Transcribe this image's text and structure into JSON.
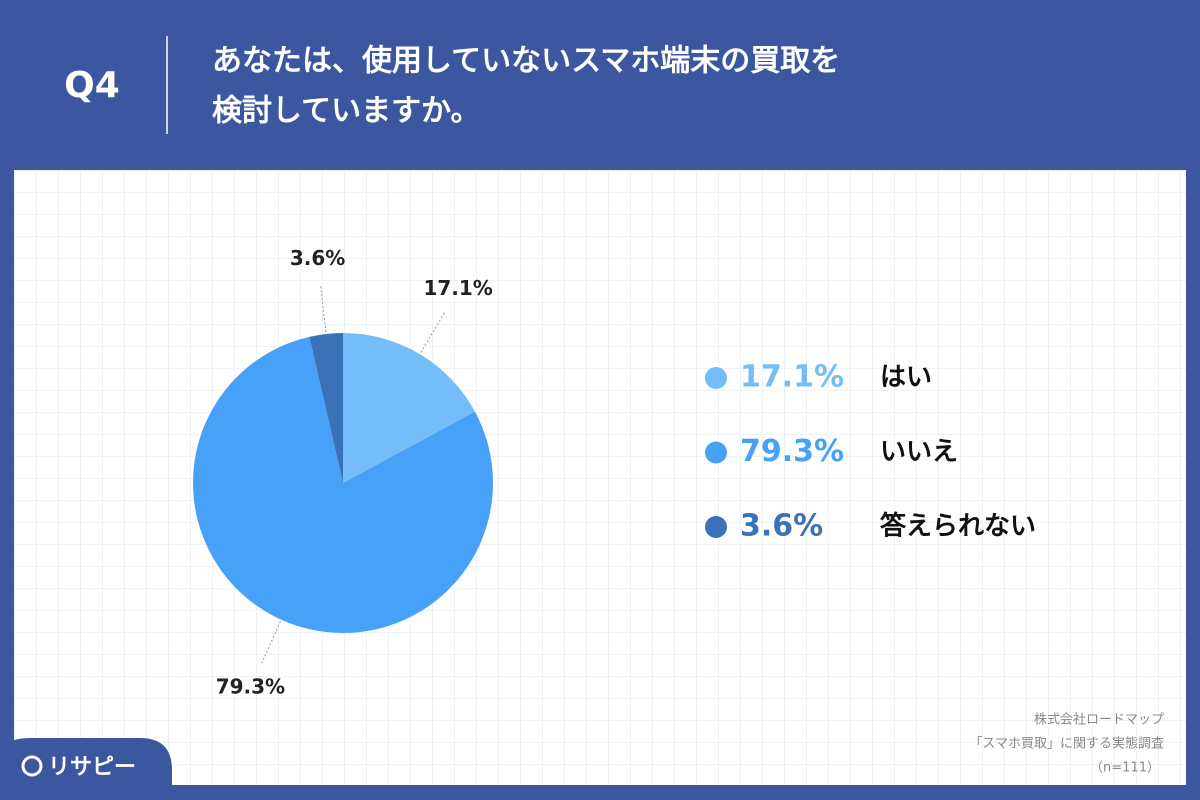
{
  "question": "Q4",
  "chart_data": {
    "type": "pie",
    "title": [
      "あなたは、使用していないスマホ端末の買取を",
      "検討していますか。"
    ],
    "categories": [
      "はい",
      "いいえ",
      "答えられない"
    ],
    "values": [
      17.1,
      79.3,
      3.6
    ],
    "value_labels": [
      "17.1%",
      "79.3%",
      "3.6%"
    ],
    "colors": [
      "#74bdf9",
      "#48a1f8",
      "#3a72b8"
    ]
  },
  "source": [
    "株式会社ロードマップ",
    "「スマホ買取」に関する実態調査",
    "（n=111）"
  ],
  "brand": "リサピー"
}
